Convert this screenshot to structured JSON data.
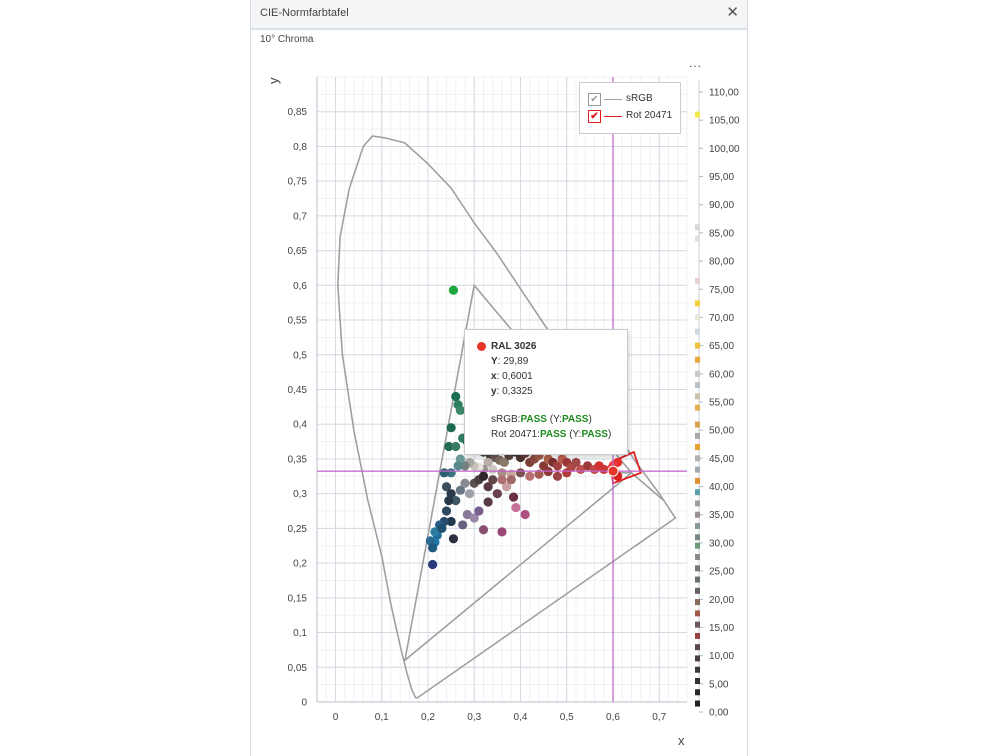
{
  "window": {
    "title": "CIE-Normfarbtafel",
    "close_icon": "close-icon",
    "subtitle": "10° Chroma",
    "menu_label": "..."
  },
  "colors": {
    "locus": "#a0a0a0",
    "srgb": "#a0a0a0",
    "rot": "#e02020",
    "crosshair": "#c060c8",
    "grid": "#d4dbe3"
  },
  "legend": [
    {
      "label": "sRGB",
      "checked": true,
      "color": "#a0a0a0"
    },
    {
      "label": "Rot 20471",
      "checked": true,
      "color": "#e02020"
    }
  ],
  "tooltip": {
    "title": "RAL 3026",
    "dot_color": "#e8352a",
    "lines": [
      {
        "key": "Y",
        "sep": ":",
        "value": "29,89"
      },
      {
        "key": "x",
        "sep": ":",
        "value": "0,6001"
      },
      {
        "key": "y",
        "sep": ":",
        "value": "0,3325"
      }
    ],
    "srgb_label": "sRGB:",
    "srgb_result": "PASS",
    "srgb_y_open": "(Y:",
    "srgb_y_result": "PASS",
    "srgb_y_close": ")",
    "rot_label": "Rot 20471:",
    "rot_result": "PASS",
    "rot_y_open": "(Y:",
    "rot_y_result": "PASS",
    "rot_y_close": ")"
  },
  "chart_data": {
    "type": "scatter",
    "xlabel": "x",
    "ylabel": "y",
    "xlim": [
      -0.04,
      0.76
    ],
    "ylim": [
      0,
      0.9
    ],
    "x_ticks": [
      [
        "0",
        0
      ],
      [
        "0,1",
        0.1
      ],
      [
        "0,2",
        0.2
      ],
      [
        "0,3",
        0.3
      ],
      [
        "0,4",
        0.4
      ],
      [
        "0,5",
        0.5
      ],
      [
        "0,6",
        0.6
      ],
      [
        "0,7",
        0.7
      ]
    ],
    "y_ticks": [
      [
        "0",
        0
      ],
      [
        "0,05",
        0.05
      ],
      [
        "0,1",
        0.1
      ],
      [
        "0,15",
        0.15
      ],
      [
        "0,2",
        0.2
      ],
      [
        "0,25",
        0.25
      ],
      [
        "0,3",
        0.3
      ],
      [
        "0,35",
        0.35
      ],
      [
        "0,4",
        0.4
      ],
      [
        "0,45",
        0.45
      ],
      [
        "0,5",
        0.5
      ],
      [
        "0,55",
        0.55
      ],
      [
        "0,6",
        0.6
      ],
      [
        "0,65",
        0.65
      ],
      [
        "0,7",
        0.7
      ],
      [
        "0,75",
        0.75
      ],
      [
        "0,8",
        0.8
      ],
      [
        "0,85",
        0.85
      ]
    ],
    "grid": true,
    "crosshair": {
      "x": 0.6001,
      "y": 0.3325
    },
    "spectral_locus": [
      [
        0.175,
        0.005
      ],
      [
        0.171,
        0.009
      ],
      [
        0.165,
        0.018
      ],
      [
        0.155,
        0.04
      ],
      [
        0.14,
        0.08
      ],
      [
        0.12,
        0.14
      ],
      [
        0.1,
        0.21
      ],
      [
        0.07,
        0.29
      ],
      [
        0.04,
        0.39
      ],
      [
        0.015,
        0.5
      ],
      [
        0.005,
        0.6
      ],
      [
        0.01,
        0.67
      ],
      [
        0.03,
        0.74
      ],
      [
        0.06,
        0.8
      ],
      [
        0.08,
        0.815
      ],
      [
        0.11,
        0.812
      ],
      [
        0.15,
        0.805
      ],
      [
        0.2,
        0.775
      ],
      [
        0.25,
        0.74
      ],
      [
        0.3,
        0.69
      ],
      [
        0.35,
        0.645
      ],
      [
        0.4,
        0.595
      ],
      [
        0.45,
        0.545
      ],
      [
        0.5,
        0.495
      ],
      [
        0.55,
        0.445
      ],
      [
        0.6,
        0.395
      ],
      [
        0.65,
        0.345
      ],
      [
        0.7,
        0.3
      ],
      [
        0.735,
        0.265
      ],
      [
        0.175,
        0.005
      ]
    ],
    "srgb_triangle": [
      [
        0.64,
        0.33
      ],
      [
        0.3,
        0.6
      ],
      [
        0.15,
        0.06
      ]
    ],
    "rot_polygon": [
      [
        0.595,
        0.345
      ],
      [
        0.645,
        0.36
      ],
      [
        0.66,
        0.33
      ],
      [
        0.6,
        0.315
      ],
      [
        0.595,
        0.345
      ]
    ],
    "rot_outer": [
      [
        0.6,
        0.33
      ],
      [
        0.64,
        0.33
      ],
      [
        0.71,
        0.29
      ]
    ],
    "highlight": {
      "label": "RAL 3026",
      "x": 0.6001,
      "y": 0.3325,
      "color": "#e8352a"
    },
    "points": [
      {
        "x": 0.255,
        "y": 0.593,
        "c": "#1aa83a"
      },
      {
        "x": 0.26,
        "y": 0.44,
        "c": "#1e6e52"
      },
      {
        "x": 0.265,
        "y": 0.428,
        "c": "#2a8060"
      },
      {
        "x": 0.27,
        "y": 0.42,
        "c": "#3a8868"
      },
      {
        "x": 0.25,
        "y": 0.395,
        "c": "#1e6a50"
      },
      {
        "x": 0.275,
        "y": 0.38,
        "c": "#2e7a62"
      },
      {
        "x": 0.245,
        "y": 0.368,
        "c": "#226a52"
      },
      {
        "x": 0.26,
        "y": 0.368,
        "c": "#3a7a60"
      },
      {
        "x": 0.285,
        "y": 0.375,
        "c": "#2e6a58"
      },
      {
        "x": 0.3,
        "y": 0.365,
        "c": "#3a6058"
      },
      {
        "x": 0.32,
        "y": 0.36,
        "c": "#404840"
      },
      {
        "x": 0.335,
        "y": 0.355,
        "c": "#4a4540"
      },
      {
        "x": 0.345,
        "y": 0.352,
        "c": "#6a5a50"
      },
      {
        "x": 0.355,
        "y": 0.348,
        "c": "#7a6a60"
      },
      {
        "x": 0.365,
        "y": 0.345,
        "c": "#8a7a6a"
      },
      {
        "x": 0.375,
        "y": 0.355,
        "c": "#5a4440"
      },
      {
        "x": 0.39,
        "y": 0.36,
        "c": "#3a2e2a"
      },
      {
        "x": 0.4,
        "y": 0.352,
        "c": "#4a3530"
      },
      {
        "x": 0.41,
        "y": 0.358,
        "c": "#6a3a35"
      },
      {
        "x": 0.42,
        "y": 0.345,
        "c": "#7a4035"
      },
      {
        "x": 0.43,
        "y": 0.35,
        "c": "#8a4a40"
      },
      {
        "x": 0.44,
        "y": 0.355,
        "c": "#a05a48"
      },
      {
        "x": 0.45,
        "y": 0.34,
        "c": "#8a3a35"
      },
      {
        "x": 0.46,
        "y": 0.35,
        "c": "#b0604a"
      },
      {
        "x": 0.47,
        "y": 0.345,
        "c": "#7a3030"
      },
      {
        "x": 0.48,
        "y": 0.34,
        "c": "#a04040"
      },
      {
        "x": 0.49,
        "y": 0.35,
        "c": "#c06050"
      },
      {
        "x": 0.5,
        "y": 0.345,
        "c": "#9a3838"
      },
      {
        "x": 0.51,
        "y": 0.338,
        "c": "#b04848"
      },
      {
        "x": 0.52,
        "y": 0.345,
        "c": "#a04848"
      },
      {
        "x": 0.53,
        "y": 0.335,
        "c": "#c05050"
      },
      {
        "x": 0.545,
        "y": 0.34,
        "c": "#a03a3a"
      },
      {
        "x": 0.56,
        "y": 0.335,
        "c": "#c04848"
      },
      {
        "x": 0.5,
        "y": 0.33,
        "c": "#b03c3c"
      },
      {
        "x": 0.48,
        "y": 0.325,
        "c": "#9c4444"
      },
      {
        "x": 0.46,
        "y": 0.332,
        "c": "#8e3a3a"
      },
      {
        "x": 0.44,
        "y": 0.328,
        "c": "#a85a55"
      },
      {
        "x": 0.42,
        "y": 0.325,
        "c": "#b87070"
      },
      {
        "x": 0.4,
        "y": 0.33,
        "c": "#7a5050"
      },
      {
        "x": 0.38,
        "y": 0.328,
        "c": "#c8a8a0"
      },
      {
        "x": 0.36,
        "y": 0.33,
        "c": "#a89088"
      },
      {
        "x": 0.34,
        "y": 0.335,
        "c": "#d0c8c0"
      },
      {
        "x": 0.33,
        "y": 0.345,
        "c": "#b8b0a8"
      },
      {
        "x": 0.32,
        "y": 0.335,
        "c": "#9a9088"
      },
      {
        "x": 0.31,
        "y": 0.338,
        "c": "#e8e4dc"
      },
      {
        "x": 0.3,
        "y": 0.34,
        "c": "#c8c4bc"
      },
      {
        "x": 0.29,
        "y": 0.345,
        "c": "#a8a8a0"
      },
      {
        "x": 0.28,
        "y": 0.34,
        "c": "#7a8080"
      },
      {
        "x": 0.27,
        "y": 0.35,
        "c": "#6a9a98"
      },
      {
        "x": 0.265,
        "y": 0.34,
        "c": "#5a8a90"
      },
      {
        "x": 0.25,
        "y": 0.33,
        "c": "#3a7080"
      },
      {
        "x": 0.235,
        "y": 0.33,
        "c": "#2a6070"
      },
      {
        "x": 0.24,
        "y": 0.31,
        "c": "#3a5060"
      },
      {
        "x": 0.25,
        "y": 0.3,
        "c": "#2a3a48"
      },
      {
        "x": 0.26,
        "y": 0.29,
        "c": "#405868"
      },
      {
        "x": 0.27,
        "y": 0.305,
        "c": "#6a7888"
      },
      {
        "x": 0.28,
        "y": 0.315,
        "c": "#8a8890"
      },
      {
        "x": 0.29,
        "y": 0.3,
        "c": "#a0a0a8"
      },
      {
        "x": 0.3,
        "y": 0.315,
        "c": "#5a5050"
      },
      {
        "x": 0.31,
        "y": 0.32,
        "c": "#48403c"
      },
      {
        "x": 0.33,
        "y": 0.31,
        "c": "#5a3a40"
      },
      {
        "x": 0.35,
        "y": 0.3,
        "c": "#6a4050"
      },
      {
        "x": 0.37,
        "y": 0.31,
        "c": "#c8a0a0"
      },
      {
        "x": 0.38,
        "y": 0.32,
        "c": "#a06868"
      },
      {
        "x": 0.36,
        "y": 0.32,
        "c": "#b07070"
      },
      {
        "x": 0.34,
        "y": 0.32,
        "c": "#604848"
      },
      {
        "x": 0.32,
        "y": 0.325,
        "c": "#302828"
      },
      {
        "x": 0.245,
        "y": 0.29,
        "c": "#283848"
      },
      {
        "x": 0.24,
        "y": 0.275,
        "c": "#2e4a60"
      },
      {
        "x": 0.25,
        "y": 0.26,
        "c": "#24384e"
      },
      {
        "x": 0.235,
        "y": 0.26,
        "c": "#2a4a6a"
      },
      {
        "x": 0.225,
        "y": 0.255,
        "c": "#2a6088"
      },
      {
        "x": 0.22,
        "y": 0.24,
        "c": "#206c98"
      },
      {
        "x": 0.215,
        "y": 0.23,
        "c": "#1c78a8"
      },
      {
        "x": 0.205,
        "y": 0.232,
        "c": "#2a6a90"
      },
      {
        "x": 0.21,
        "y": 0.222,
        "c": "#205a80"
      },
      {
        "x": 0.215,
        "y": 0.245,
        "c": "#287aa0"
      },
      {
        "x": 0.23,
        "y": 0.25,
        "c": "#1e5070"
      },
      {
        "x": 0.21,
        "y": 0.198,
        "c": "#283a78"
      },
      {
        "x": 0.255,
        "y": 0.235,
        "c": "#2a3040"
      },
      {
        "x": 0.275,
        "y": 0.255,
        "c": "#6a6080"
      },
      {
        "x": 0.285,
        "y": 0.27,
        "c": "#8a7898"
      },
      {
        "x": 0.3,
        "y": 0.265,
        "c": "#9a88a8"
      },
      {
        "x": 0.31,
        "y": 0.275,
        "c": "#7a6090"
      },
      {
        "x": 0.32,
        "y": 0.248,
        "c": "#8a5070"
      },
      {
        "x": 0.33,
        "y": 0.288,
        "c": "#5a3a48"
      },
      {
        "x": 0.36,
        "y": 0.245,
        "c": "#9a4878"
      },
      {
        "x": 0.385,
        "y": 0.295,
        "c": "#6a3040"
      },
      {
        "x": 0.39,
        "y": 0.28,
        "c": "#c87098"
      },
      {
        "x": 0.41,
        "y": 0.27,
        "c": "#b05080"
      },
      {
        "x": 0.61,
        "y": 0.345,
        "c": "#e83030"
      },
      {
        "x": 0.6,
        "y": 0.34,
        "c": "#f04040"
      },
      {
        "x": 0.605,
        "y": 0.33,
        "c": "#e82828"
      },
      {
        "x": 0.61,
        "y": 0.325,
        "c": "#d82020"
      },
      {
        "x": 0.595,
        "y": 0.335,
        "c": "#f03838"
      },
      {
        "x": 0.57,
        "y": 0.34,
        "c": "#d03030"
      },
      {
        "x": 0.58,
        "y": 0.335,
        "c": "#c83838"
      }
    ]
  },
  "color_scale": {
    "labels": [
      "110,00",
      "105,00",
      "100,00",
      "95,00",
      "90,00",
      "85,00",
      "80,00",
      "75,00",
      "70,00",
      "65,00",
      "60,00",
      "55,00",
      "50,00",
      "45,00",
      "40,00",
      "35,00",
      "30,00",
      "25,00",
      "20,00",
      "15,00",
      "10,00",
      "5,00",
      "0,00"
    ],
    "range": [
      0,
      110
    ],
    "swatches": [
      {
        "value": 106,
        "c": "#f2ea4a"
      },
      {
        "value": 86,
        "c": "#d8d8d8"
      },
      {
        "value": 84,
        "c": "#e0e0e0"
      },
      {
        "value": 76.5,
        "c": "#e8d0d0"
      },
      {
        "value": 72.5,
        "c": "#f0d040"
      },
      {
        "value": 70,
        "c": "#e8e8d8"
      },
      {
        "value": 67.5,
        "c": "#d0d8e0"
      },
      {
        "value": 65,
        "c": "#f0c040"
      },
      {
        "value": 62.5,
        "c": "#e8a840"
      },
      {
        "value": 60,
        "c": "#c8c8c8"
      },
      {
        "value": 58,
        "c": "#b8c0c8"
      },
      {
        "value": 56,
        "c": "#d0c0b0"
      },
      {
        "value": 54,
        "c": "#e0b050"
      },
      {
        "value": 51,
        "c": "#d8a050"
      },
      {
        "value": 49,
        "c": "#a8a8a8"
      },
      {
        "value": 47,
        "c": "#e8a030"
      },
      {
        "value": 45,
        "c": "#b0b0b0"
      },
      {
        "value": 43,
        "c": "#a0a8b0"
      },
      {
        "value": 41,
        "c": "#e09030"
      },
      {
        "value": 39,
        "c": "#5aa0a8"
      },
      {
        "value": 37,
        "c": "#a0a0a0"
      },
      {
        "value": 35,
        "c": "#9a9090"
      },
      {
        "value": 33,
        "c": "#8a9a9a"
      },
      {
        "value": 31,
        "c": "#7a8a8a"
      },
      {
        "value": 29.5,
        "c": "#6a9a78"
      },
      {
        "value": 27.5,
        "c": "#8a8a8a"
      },
      {
        "value": 25.5,
        "c": "#7a7878"
      },
      {
        "value": 23.5,
        "c": "#6a7070"
      },
      {
        "value": 21.5,
        "c": "#6a6068"
      },
      {
        "value": 19.5,
        "c": "#8a6a5a"
      },
      {
        "value": 17.5,
        "c": "#a05a48"
      },
      {
        "value": 15.5,
        "c": "#6a5a58"
      },
      {
        "value": 13.5,
        "c": "#9a4040"
      },
      {
        "value": 11.5,
        "c": "#5a4848"
      },
      {
        "value": 9.5,
        "c": "#4a4040"
      },
      {
        "value": 7.5,
        "c": "#3a3838"
      },
      {
        "value": 5.5,
        "c": "#303030"
      },
      {
        "value": 3.5,
        "c": "#282828"
      },
      {
        "value": 1.5,
        "c": "#202020"
      }
    ]
  }
}
